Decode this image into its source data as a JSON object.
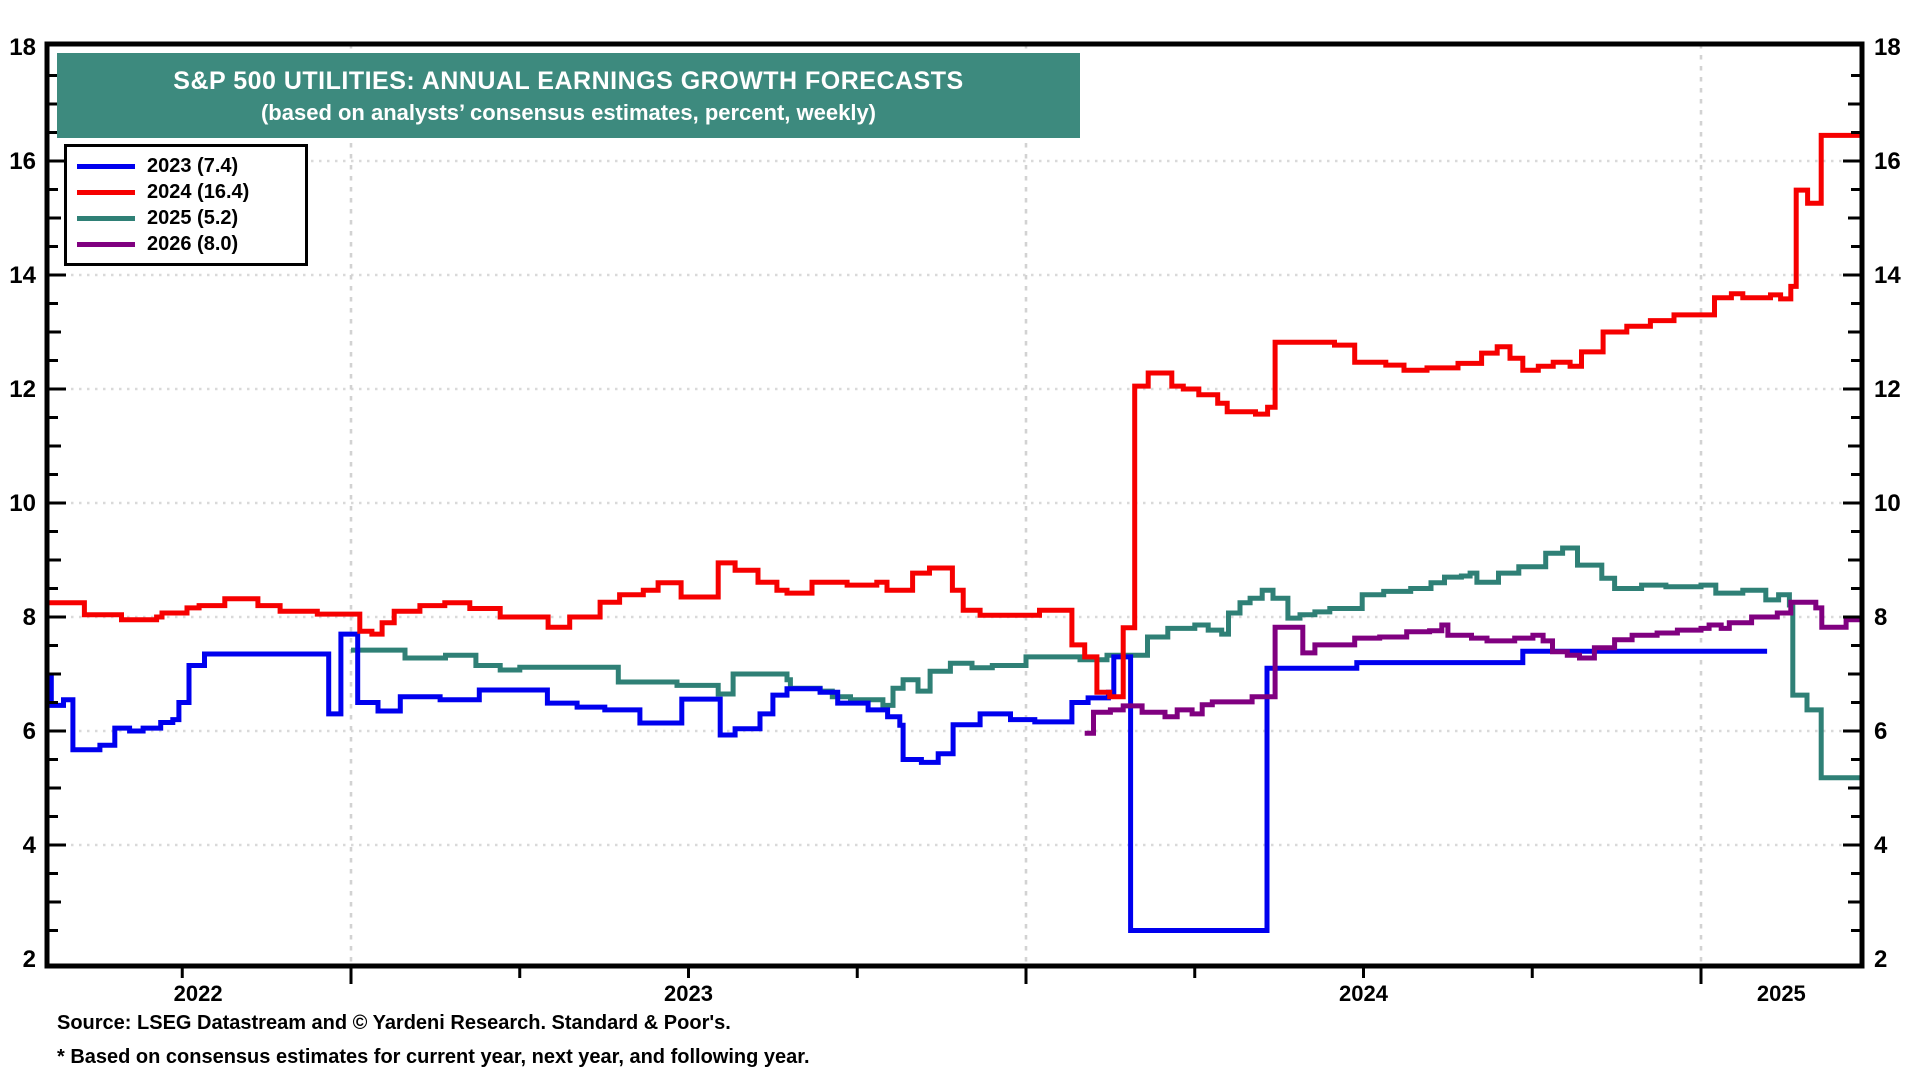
{
  "palette": {
    "background": "#ffffff",
    "header_bg": "#3d8a7e",
    "header_text": "#ffffff",
    "grid": "#d9d9d9",
    "axis": "#000000"
  },
  "chart_data": {
    "type": "line",
    "title": "S&P 500 UTILITIES: ANNUAL EARNINGS GROWTH FORECASTS",
    "subtitle": "(based on analysts’ consensus estimates, percent, weekly)",
    "x_axis": {
      "start": 2022.547,
      "end": 2025.238,
      "years": [
        2022,
        2023,
        2024,
        2025
      ],
      "quarter_tick_step": 0.25,
      "year_gridlines": [
        2023,
        2024,
        2025
      ]
    },
    "y_axis": {
      "min": 2,
      "max": 18,
      "label_step": 2,
      "minor_tick_step": 0.5,
      "gridline_values": [
        4,
        6,
        8,
        10,
        12,
        14,
        16
      ],
      "labels_both_sides": true
    },
    "series": [
      {
        "name": "2023",
        "legend_label": "2023 (7.4)",
        "final_value": 7.4,
        "color": "#0000ee",
        "end": 2025.098,
        "points": [
          [
            2022.547,
            6.95
          ],
          [
            2022.556,
            6.45
          ],
          [
            2022.574,
            6.55
          ],
          [
            2022.588,
            5.67
          ],
          [
            2022.628,
            5.75
          ],
          [
            2022.65,
            6.05
          ],
          [
            2022.672,
            6.0
          ],
          [
            2022.692,
            6.05
          ],
          [
            2022.718,
            6.15
          ],
          [
            2022.736,
            6.2
          ],
          [
            2022.745,
            6.5
          ],
          [
            2022.76,
            7.15
          ],
          [
            2022.783,
            7.35
          ],
          [
            2022.967,
            6.3
          ],
          [
            2022.985,
            7.7
          ],
          [
            2023.01,
            6.5
          ],
          [
            2023.04,
            6.35
          ],
          [
            2023.073,
            6.6
          ],
          [
            2023.132,
            6.55
          ],
          [
            2023.19,
            6.72
          ],
          [
            2023.291,
            6.49
          ],
          [
            2023.335,
            6.42
          ],
          [
            2023.376,
            6.37
          ],
          [
            2023.428,
            6.14
          ],
          [
            2023.49,
            6.56
          ],
          [
            2023.547,
            5.93
          ],
          [
            2023.569,
            6.04
          ],
          [
            2023.606,
            6.3
          ],
          [
            2023.625,
            6.63
          ],
          [
            2023.646,
            6.74
          ],
          [
            2023.695,
            6.68
          ],
          [
            2023.721,
            6.49
          ],
          [
            2023.766,
            6.37
          ],
          [
            2023.795,
            6.25
          ],
          [
            2023.813,
            6.1
          ],
          [
            2023.818,
            5.5
          ],
          [
            2023.845,
            5.45
          ],
          [
            2023.87,
            5.6
          ],
          [
            2023.892,
            6.11
          ],
          [
            2023.932,
            6.3
          ],
          [
            2023.977,
            6.2
          ],
          [
            2024.013,
            6.16
          ],
          [
            2024.068,
            6.5
          ],
          [
            2024.092,
            6.58
          ],
          [
            2024.122,
            6.68
          ],
          [
            2024.13,
            7.3
          ],
          [
            2024.155,
            2.5
          ],
          [
            2024.357,
            7.1
          ],
          [
            2024.49,
            7.2
          ],
          [
            2024.736,
            7.4
          ]
        ]
      },
      {
        "name": "2024",
        "legend_label": "2024 (16.4)",
        "final_value": 16.4,
        "color": "#f60000",
        "end": 2025.238,
        "points": [
          [
            2022.547,
            8.25
          ],
          [
            2022.605,
            8.04
          ],
          [
            2022.66,
            7.95
          ],
          [
            2022.712,
            8.0
          ],
          [
            2022.72,
            8.07
          ],
          [
            2022.757,
            8.16
          ],
          [
            2022.775,
            8.2
          ],
          [
            2022.813,
            8.32
          ],
          [
            2022.862,
            8.2
          ],
          [
            2022.895,
            8.1
          ],
          [
            2022.95,
            8.05
          ],
          [
            2023.013,
            7.75
          ],
          [
            2023.031,
            7.7
          ],
          [
            2023.046,
            7.9
          ],
          [
            2023.064,
            8.1
          ],
          [
            2023.102,
            8.2
          ],
          [
            2023.139,
            8.25
          ],
          [
            2023.176,
            8.15
          ],
          [
            2023.221,
            8.0
          ],
          [
            2023.292,
            7.82
          ],
          [
            2023.324,
            8.0
          ],
          [
            2023.369,
            8.26
          ],
          [
            2023.398,
            8.39
          ],
          [
            2023.433,
            8.47
          ],
          [
            2023.455,
            8.6
          ],
          [
            2023.489,
            8.35
          ],
          [
            2023.544,
            8.95
          ],
          [
            2023.569,
            8.82
          ],
          [
            2023.603,
            8.61
          ],
          [
            2023.631,
            8.47
          ],
          [
            2023.646,
            8.42
          ],
          [
            2023.683,
            8.61
          ],
          [
            2023.735,
            8.56
          ],
          [
            2023.779,
            8.61
          ],
          [
            2023.794,
            8.47
          ],
          [
            2023.832,
            8.77
          ],
          [
            2023.857,
            8.86
          ],
          [
            2023.891,
            8.47
          ],
          [
            2023.907,
            8.12
          ],
          [
            2023.932,
            8.03
          ],
          [
            2024.02,
            8.12
          ],
          [
            2024.068,
            7.51
          ],
          [
            2024.087,
            7.3
          ],
          [
            2024.105,
            6.68
          ],
          [
            2024.124,
            6.6
          ],
          [
            2024.144,
            7.81
          ],
          [
            2024.161,
            12.05
          ],
          [
            2024.181,
            12.28
          ],
          [
            2024.216,
            12.05
          ],
          [
            2024.233,
            12.0
          ],
          [
            2024.256,
            11.9
          ],
          [
            2024.284,
            11.75
          ],
          [
            2024.298,
            11.6
          ],
          [
            2024.34,
            11.56
          ],
          [
            2024.358,
            11.68
          ],
          [
            2024.369,
            12.82
          ],
          [
            2024.457,
            12.77
          ],
          [
            2024.487,
            12.47
          ],
          [
            2024.533,
            12.42
          ],
          [
            2024.56,
            12.33
          ],
          [
            2024.594,
            12.37
          ],
          [
            2024.64,
            12.45
          ],
          [
            2024.675,
            12.63
          ],
          [
            2024.698,
            12.74
          ],
          [
            2024.717,
            12.54
          ],
          [
            2024.736,
            12.33
          ],
          [
            2024.759,
            12.4
          ],
          [
            2024.781,
            12.47
          ],
          [
            2024.806,
            12.4
          ],
          [
            2024.823,
            12.65
          ],
          [
            2024.855,
            13.0
          ],
          [
            2024.89,
            13.1
          ],
          [
            2024.925,
            13.2
          ],
          [
            2024.96,
            13.3
          ],
          [
            2025.02,
            13.6
          ],
          [
            2025.045,
            13.67
          ],
          [
            2025.062,
            13.6
          ],
          [
            2025.103,
            13.65
          ],
          [
            2025.118,
            13.58
          ],
          [
            2025.133,
            13.8
          ],
          [
            2025.141,
            15.49
          ],
          [
            2025.158,
            15.26
          ],
          [
            2025.178,
            16.45
          ]
        ]
      },
      {
        "name": "2025",
        "legend_label": "2025 (5.2)",
        "final_value": 5.2,
        "color": "#2f8076",
        "end": 2025.238,
        "points": [
          [
            2023.0,
            7.42
          ],
          [
            2023.08,
            7.28
          ],
          [
            2023.14,
            7.33
          ],
          [
            2023.185,
            7.15
          ],
          [
            2023.221,
            7.07
          ],
          [
            2023.25,
            7.12
          ],
          [
            2023.396,
            6.86
          ],
          [
            2023.483,
            6.8
          ],
          [
            2023.544,
            6.65
          ],
          [
            2023.566,
            7.0
          ],
          [
            2023.646,
            6.9
          ],
          [
            2023.651,
            6.75
          ],
          [
            2023.695,
            6.7
          ],
          [
            2023.713,
            6.6
          ],
          [
            2023.74,
            6.55
          ],
          [
            2023.788,
            6.45
          ],
          [
            2023.803,
            6.75
          ],
          [
            2023.818,
            6.9
          ],
          [
            2023.84,
            6.7
          ],
          [
            2023.858,
            7.05
          ],
          [
            2023.888,
            7.19
          ],
          [
            2023.92,
            7.11
          ],
          [
            2023.95,
            7.15
          ],
          [
            2024.0,
            7.3
          ],
          [
            2024.08,
            7.25
          ],
          [
            2024.12,
            7.33
          ],
          [
            2024.18,
            7.65
          ],
          [
            2024.21,
            7.8
          ],
          [
            2024.25,
            7.86
          ],
          [
            2024.27,
            7.77
          ],
          [
            2024.29,
            7.7
          ],
          [
            2024.3,
            8.07
          ],
          [
            2024.317,
            8.25
          ],
          [
            2024.332,
            8.33
          ],
          [
            2024.35,
            8.47
          ],
          [
            2024.366,
            8.33
          ],
          [
            2024.388,
            7.98
          ],
          [
            2024.406,
            8.04
          ],
          [
            2024.428,
            8.09
          ],
          [
            2024.45,
            8.15
          ],
          [
            2024.498,
            8.39
          ],
          [
            2024.53,
            8.45
          ],
          [
            2024.57,
            8.5
          ],
          [
            2024.6,
            8.6
          ],
          [
            2024.62,
            8.7
          ],
          [
            2024.645,
            8.72
          ],
          [
            2024.658,
            8.77
          ],
          [
            2024.668,
            8.61
          ],
          [
            2024.7,
            8.77
          ],
          [
            2024.73,
            8.88
          ],
          [
            2024.77,
            9.12
          ],
          [
            2024.795,
            9.21
          ],
          [
            2024.817,
            8.91
          ],
          [
            2024.853,
            8.68
          ],
          [
            2024.872,
            8.5
          ],
          [
            2024.912,
            8.56
          ],
          [
            2024.948,
            8.53
          ],
          [
            2025.0,
            8.56
          ],
          [
            2025.022,
            8.42
          ],
          [
            2025.062,
            8.47
          ],
          [
            2025.096,
            8.3
          ],
          [
            2025.115,
            8.39
          ],
          [
            2025.131,
            8.21
          ],
          [
            2025.136,
            6.63
          ],
          [
            2025.157,
            6.37
          ],
          [
            2025.178,
            5.18
          ]
        ]
      },
      {
        "name": "2026",
        "legend_label": "2026 (8.0)",
        "final_value": 8.0,
        "color": "#800080",
        "end": 2025.238,
        "points": [
          [
            2024.087,
            5.96
          ],
          [
            2024.1,
            6.33
          ],
          [
            2024.125,
            6.37
          ],
          [
            2024.144,
            6.44
          ],
          [
            2024.172,
            6.33
          ],
          [
            2024.206,
            6.25
          ],
          [
            2024.224,
            6.37
          ],
          [
            2024.246,
            6.3
          ],
          [
            2024.261,
            6.46
          ],
          [
            2024.276,
            6.51
          ],
          [
            2024.335,
            6.6
          ],
          [
            2024.369,
            7.82
          ],
          [
            2024.41,
            7.37
          ],
          [
            2024.428,
            7.51
          ],
          [
            2024.487,
            7.63
          ],
          [
            2024.524,
            7.65
          ],
          [
            2024.564,
            7.74
          ],
          [
            2024.598,
            7.76
          ],
          [
            2024.616,
            7.86
          ],
          [
            2024.625,
            7.68
          ],
          [
            2024.66,
            7.63
          ],
          [
            2024.683,
            7.58
          ],
          [
            2024.724,
            7.63
          ],
          [
            2024.751,
            7.68
          ],
          [
            2024.766,
            7.58
          ],
          [
            2024.78,
            7.39
          ],
          [
            2024.802,
            7.33
          ],
          [
            2024.82,
            7.28
          ],
          [
            2024.842,
            7.46
          ],
          [
            2024.872,
            7.6
          ],
          [
            2024.898,
            7.68
          ],
          [
            2024.935,
            7.72
          ],
          [
            2024.965,
            7.77
          ],
          [
            2025.0,
            7.8
          ],
          [
            2025.012,
            7.86
          ],
          [
            2025.03,
            7.8
          ],
          [
            2025.042,
            7.9
          ],
          [
            2025.075,
            8.0
          ],
          [
            2025.113,
            8.07
          ],
          [
            2025.133,
            8.26
          ],
          [
            2025.17,
            8.16
          ],
          [
            2025.179,
            7.82
          ],
          [
            2025.215,
            7.95
          ]
        ]
      }
    ]
  },
  "footer": {
    "source": "Source: LSEG Datastream and © Yardeni Research. Standard & Poor's.",
    "footnote": "* Based on consensus estimates for current year, next year, and following year."
  }
}
